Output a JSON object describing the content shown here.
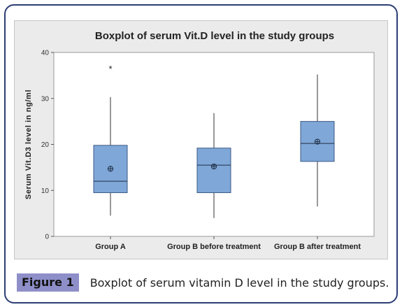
{
  "figure": {
    "label": "Figure 1",
    "caption": "Boxplot of serum vitamin D level in the study groups."
  },
  "chart_data": {
    "type": "boxplot",
    "title": "Boxplot of serum Vit.D level in the study groups",
    "xlabel": "",
    "ylabel": "Serum Vit.D3 level in ng/ml",
    "ylim": [
      0,
      40
    ],
    "yticks": [
      0,
      10,
      20,
      30,
      40
    ],
    "grid": false,
    "categories": [
      "Group A",
      "Group B before treatment",
      "Group B after treatment"
    ],
    "boxes": [
      {
        "category": "Group A",
        "whisker_low": 4.5,
        "q1": 9.5,
        "median": 12,
        "q3": 19.8,
        "whisker_high": 30.3,
        "mean": 14.7,
        "outliers": [
          36.5
        ]
      },
      {
        "category": "Group B before treatment",
        "whisker_low": 4,
        "q1": 9.5,
        "median": 15.5,
        "q3": 19.2,
        "whisker_high": 26.8,
        "mean": 15.2,
        "outliers": []
      },
      {
        "category": "Group B after treatment",
        "whisker_low": 6.5,
        "q1": 16.3,
        "median": 20.2,
        "q3": 25,
        "whisker_high": 35.2,
        "mean": 20.6,
        "outliers": []
      }
    ],
    "colors": {
      "box_fill": "#7fa7d8",
      "box_stroke": "#3b5a85",
      "line": "#333333",
      "panel": "#ebebeb",
      "plot": "#ffffff"
    }
  }
}
